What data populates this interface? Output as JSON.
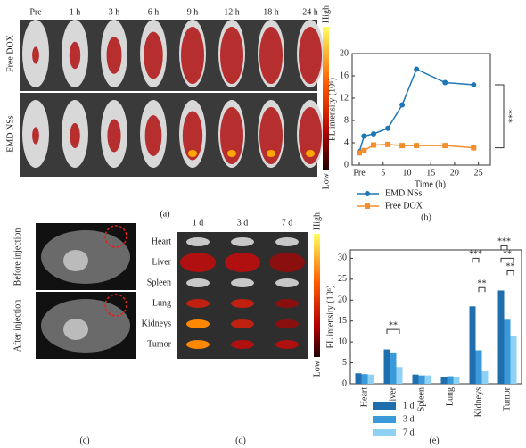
{
  "figure": {
    "a": {
      "label": "(a)",
      "times": [
        "Pre",
        "1 h",
        "3 h",
        "6 h",
        "9 h",
        "12 h",
        "18 h",
        "24 h"
      ],
      "rows": [
        "Free DOX",
        "EMD NSs"
      ],
      "scale": [
        "High",
        "Low"
      ]
    },
    "c": {
      "label": "(c)",
      "rows": [
        "Before injection",
        "After injection"
      ]
    },
    "d": {
      "label": "(d)",
      "days": [
        "1 d",
        "3 d",
        "7 d"
      ],
      "organs": [
        "Heart",
        "Liver",
        "Spleen",
        "Lung",
        "Kidneys",
        "Tumor"
      ],
      "scale": [
        "High",
        "Low"
      ]
    },
    "b": {
      "label": "(b)"
    },
    "e": {
      "label": "(e)"
    }
  },
  "chart_data": [
    {
      "type": "line",
      "y_label": "FL intensity (10⁶)",
      "x_label": "Time (h)",
      "x": [
        0,
        1,
        3,
        6,
        9,
        12,
        18,
        24
      ],
      "series": [
        {
          "name": "EMD NSs",
          "color": "#1f77b4",
          "values": [
            2.4,
            5.2,
            5.6,
            6.6,
            10.8,
            17.2,
            14.8,
            14.4
          ]
        },
        {
          "name": "Free DOX",
          "color": "#f28e2b",
          "values": [
            2.2,
            2.6,
            3.6,
            3.7,
            3.5,
            3.5,
            3.5,
            3.1
          ]
        }
      ],
      "xlim": [
        -1.5,
        27.5
      ],
      "xticks": [
        {
          "value": 0,
          "label": "Pre"
        },
        5,
        10,
        15,
        20,
        25
      ],
      "ylim": [
        0,
        20
      ],
      "yticks": [
        0,
        4,
        8,
        12,
        16,
        20
      ],
      "annotation": "***"
    },
    {
      "type": "bar",
      "y_label": "FL intensity (10⁶)",
      "categories": [
        "Heart",
        "Liver",
        "Spleen",
        "Lung",
        "Kidneys",
        "Tumor"
      ],
      "series": [
        {
          "name": "1 d",
          "color": "#1f6fae",
          "values": [
            2.5,
            8.2,
            2.2,
            1.5,
            18.5,
            22.3
          ]
        },
        {
          "name": "3 d",
          "color": "#3a9ad9",
          "values": [
            2.3,
            7.5,
            2.0,
            1.8,
            8.0,
            15.3
          ]
        },
        {
          "name": "7 d",
          "color": "#8fd0f5",
          "values": [
            2.2,
            4.0,
            2.0,
            1.5,
            3.0,
            11.5
          ]
        }
      ],
      "ylim": [
        0,
        32
      ],
      "yticks": [
        0,
        5,
        10,
        15,
        20,
        25,
        30
      ],
      "annotations": [
        "**",
        "***",
        "**",
        "***",
        "**",
        "**"
      ]
    }
  ]
}
